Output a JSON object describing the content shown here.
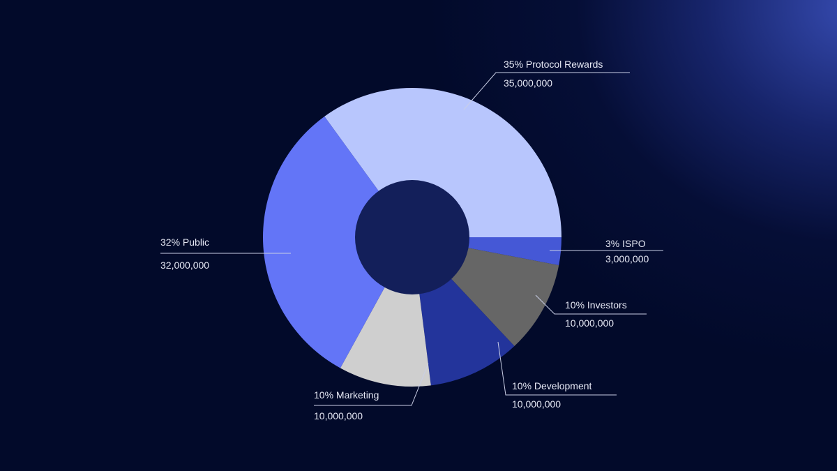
{
  "chart_data": {
    "type": "pie",
    "categories": [
      "Protocol Rewards",
      "ISPO",
      "Investors",
      "Development",
      "Marketing",
      "Public"
    ],
    "values": [
      35000000,
      3000000,
      10000000,
      10000000,
      10000000,
      32000000
    ],
    "colors": [
      "#b8c6fd",
      "#4558d6",
      "#666666",
      "#23349b",
      "#cfcfcf",
      "#6375f7"
    ],
    "center_color": "#131f5a",
    "labels": [
      {
        "percent": "35% Protocol Rewards",
        "amount": "35,000,000"
      },
      {
        "percent": "3% ISPO",
        "amount": "3,000,000"
      },
      {
        "percent": "10% Investors",
        "amount": "10,000,000"
      },
      {
        "percent": "10% Development",
        "amount": "10,000,000"
      },
      {
        "percent": "10% Marketing",
        "amount": "10,000,000"
      },
      {
        "percent": "32% Public",
        "amount": "32,000,000"
      }
    ],
    "legend": "none"
  }
}
